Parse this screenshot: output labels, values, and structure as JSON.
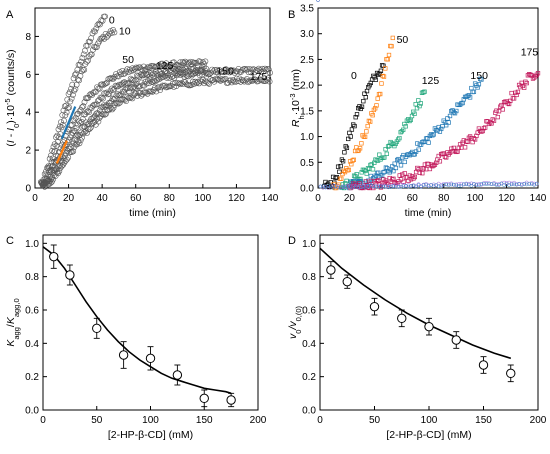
{
  "chart_data": [
    {
      "panel": "A",
      "type": "scatter",
      "xlabel": "time (min)",
      "ylabel_parts": [
        "(",
        "I",
        " - ",
        "I",
        "0",
        ")·10",
        "-5",
        " (counts/s)"
      ],
      "xlim": [
        0,
        140
      ],
      "ylim": [
        0,
        9.5
      ],
      "xticks": [
        0,
        20,
        40,
        60,
        80,
        100,
        120,
        140
      ],
      "yticks": [
        0,
        2,
        4,
        6,
        8
      ],
      "grid": false,
      "series": [
        {
          "label": "0",
          "lag": 3.5,
          "rate": 0.4,
          "end": 42,
          "points": [
            [
              5,
              0.4
            ],
            [
              10,
              1.8
            ],
            [
              15,
              3.4
            ],
            [
              20,
              4.9
            ],
            [
              25,
              6.2
            ],
            [
              30,
              7.3
            ],
            [
              35,
              8.2
            ],
            [
              40,
              8.9
            ],
            [
              42,
              9.1
            ]
          ]
        },
        {
          "label": "10",
          "lag": 3.8,
          "rate": 0.3,
          "end": 48,
          "points": [
            [
              5,
              0.3
            ],
            [
              10,
              1.5
            ],
            [
              15,
              2.9
            ],
            [
              20,
              4.3
            ],
            [
              25,
              5.5
            ],
            [
              30,
              6.5
            ],
            [
              35,
              7.3
            ],
            [
              40,
              7.9
            ],
            [
              45,
              8.2
            ],
            [
              48,
              8.3
            ]
          ]
        },
        {
          "label": "50",
          "lag": 4,
          "rate": 0.2,
          "end": 102,
          "points": [
            [
              5,
              0.2
            ],
            [
              10,
              1
            ],
            [
              15,
              2
            ],
            [
              20,
              3.1
            ],
            [
              30,
              4.6
            ],
            [
              40,
              5.5
            ],
            [
              50,
              6
            ],
            [
              60,
              6.3
            ],
            [
              80,
              6.5
            ],
            [
              100,
              6.6
            ]
          ]
        },
        {
          "label": "125",
          "lag": 4.5,
          "rate": 0.15,
          "end": 102,
          "points": [
            [
              5,
              0.1
            ],
            [
              10,
              0.8
            ],
            [
              15,
              1.6
            ],
            [
              20,
              2.6
            ],
            [
              30,
              3.9
            ],
            [
              40,
              4.8
            ],
            [
              50,
              5.4
            ],
            [
              60,
              5.8
            ],
            [
              80,
              6.2
            ],
            [
              100,
              6.3
            ]
          ]
        },
        {
          "label": "150",
          "lag": 5,
          "rate": 0.15,
          "end": 140,
          "points": [
            [
              5,
              0.1
            ],
            [
              10,
              0.6
            ],
            [
              15,
              1.3
            ],
            [
              20,
              2.1
            ],
            [
              30,
              3.3
            ],
            [
              40,
              4.2
            ],
            [
              50,
              4.9
            ],
            [
              60,
              5.4
            ],
            [
              80,
              5.9
            ],
            [
              100,
              6.1
            ],
            [
              120,
              6.2
            ],
            [
              140,
              6.2
            ]
          ]
        },
        {
          "label": "175",
          "lag": 5.5,
          "rate": 0.15,
          "end": 140,
          "points": [
            [
              6,
              0.1
            ],
            [
              10,
              0.4
            ],
            [
              15,
              1
            ],
            [
              20,
              1.7
            ],
            [
              30,
              2.9
            ],
            [
              40,
              3.8
            ],
            [
              50,
              4.5
            ],
            [
              60,
              4.9
            ],
            [
              80,
              5.4
            ],
            [
              100,
              5.6
            ],
            [
              120,
              5.7
            ],
            [
              140,
              5.7
            ]
          ]
        }
      ],
      "linear_fits": [
        {
          "color": "#1f77b4",
          "x": [
            16,
            24
          ],
          "y": [
            2.6,
            4.3
          ]
        },
        {
          "color": "#ff7f0e",
          "x": [
            13,
            19
          ],
          "y": [
            1.3,
            2.5
          ]
        }
      ]
    },
    {
      "panel": "B",
      "type": "scatter",
      "xlabel": "time (min)",
      "ylabel_parts": [
        "R",
        "h",
        "·10",
        "-3",
        " (nm)"
      ],
      "xlim": [
        0,
        140
      ],
      "ylim": [
        0,
        3.5
      ],
      "xticks": [
        0,
        20,
        40,
        60,
        80,
        100,
        120,
        140
      ],
      "yticks": [
        0.0,
        0.5,
        1.0,
        1.5,
        2.0,
        2.5,
        3.0,
        3.5
      ],
      "grid": false,
      "series": [
        {
          "label": "0",
          "color": "#000000",
          "points": [
            [
              4,
              0.02
            ],
            [
              10,
              0.15
            ],
            [
              15,
              0.5
            ],
            [
              20,
              1.0
            ],
            [
              25,
              1.45
            ],
            [
              30,
              1.8
            ],
            [
              35,
              2.1
            ],
            [
              40,
              2.35
            ],
            [
              42,
              2.45
            ]
          ]
        },
        {
          "label": "50",
          "color": "#ff7f0e",
          "points": [
            [
              10,
              0.03
            ],
            [
              15,
              0.2
            ],
            [
              20,
              0.45
            ],
            [
              25,
              0.75
            ],
            [
              30,
              1.05
            ],
            [
              35,
              1.45
            ],
            [
              40,
              1.95
            ],
            [
              45,
              2.6
            ],
            [
              48,
              2.95
            ]
          ]
        },
        {
          "label": "125",
          "color": "#1fa67a",
          "points": [
            [
              15,
              0.03
            ],
            [
              20,
              0.1
            ],
            [
              30,
              0.3
            ],
            [
              40,
              0.6
            ],
            [
              50,
              0.95
            ],
            [
              55,
              1.2
            ],
            [
              60,
              1.45
            ],
            [
              65,
              1.7
            ],
            [
              68,
              1.9
            ]
          ]
        },
        {
          "label": "150",
          "color": "#1f77b4",
          "points": [
            [
              20,
              0.03
            ],
            [
              30,
              0.1
            ],
            [
              40,
              0.25
            ],
            [
              50,
              0.45
            ],
            [
              60,
              0.7
            ],
            [
              70,
              0.95
            ],
            [
              80,
              1.25
            ],
            [
              90,
              1.6
            ],
            [
              100,
              1.95
            ],
            [
              104,
              2.1
            ]
          ]
        },
        {
          "label": "175",
          "color": "#c2185b",
          "points": [
            [
              20,
              0.02
            ],
            [
              40,
              0.08
            ],
            [
              60,
              0.25
            ],
            [
              80,
              0.6
            ],
            [
              100,
              1.0
            ],
            [
              110,
              1.3
            ],
            [
              120,
              1.65
            ],
            [
              130,
              2.0
            ],
            [
              140,
              2.3
            ]
          ]
        },
        {
          "label": "",
          "color": "#9c6ade",
          "points": [
            [
              0,
              0.02
            ],
            [
              40,
              0.04
            ],
            [
              80,
              0.07
            ],
            [
              120,
              0.09
            ],
            [
              140,
              0.1
            ]
          ]
        },
        {
          "label": "",
          "color": "#3b82c4",
          "points": [
            [
              0,
              0.02
            ],
            [
              40,
              0.03
            ],
            [
              80,
              0.05
            ],
            [
              120,
              0.07
            ],
            [
              140,
              0.08
            ]
          ]
        }
      ]
    },
    {
      "panel": "C",
      "type": "scatter",
      "xlabel": "[2-HP-β-CD] (mM)",
      "ylabel_parts": [
        "K",
        "agg",
        "/",
        "K",
        "agg,0"
      ],
      "xlim": [
        0,
        200
      ],
      "ylim": [
        0,
        1.05
      ],
      "xticks": [
        0,
        50,
        100,
        150,
        200
      ],
      "yticks": [
        0.0,
        0.2,
        0.4,
        0.6,
        0.8,
        1.0
      ],
      "grid": false,
      "x": [
        10,
        25,
        50,
        75,
        100,
        125,
        150,
        175
      ],
      "y": [
        0.92,
        0.81,
        0.49,
        0.33,
        0.31,
        0.21,
        0.07,
        0.06
      ],
      "yerr": [
        0.07,
        0.06,
        0.06,
        0.08,
        0.07,
        0.06,
        0.05,
        0.04
      ],
      "fit": {
        "x": [
          0,
          10,
          20,
          30,
          40,
          50,
          60,
          70,
          80,
          90,
          100,
          110,
          120,
          130,
          140,
          150,
          160,
          170,
          175
        ],
        "y": [
          0.98,
          0.93,
          0.85,
          0.75,
          0.65,
          0.56,
          0.48,
          0.41,
          0.35,
          0.3,
          0.26,
          0.22,
          0.19,
          0.17,
          0.15,
          0.13,
          0.12,
          0.11,
          0.1
        ]
      }
    },
    {
      "panel": "D",
      "type": "scatter",
      "xlabel": "[2-HP-β-CD] (mM)",
      "ylabel_parts": [
        "v",
        "0",
        "/v",
        "0,(0)"
      ],
      "xlim": [
        0,
        200
      ],
      "ylim": [
        0,
        1.05
      ],
      "xticks": [
        0,
        50,
        100,
        150,
        200
      ],
      "yticks": [
        0.0,
        0.2,
        0.4,
        0.6,
        0.8,
        1.0
      ],
      "grid": false,
      "x": [
        10,
        25,
        50,
        75,
        100,
        125,
        150,
        175
      ],
      "y": [
        0.84,
        0.77,
        0.62,
        0.55,
        0.5,
        0.42,
        0.27,
        0.22
      ],
      "yerr": [
        0.05,
        0.04,
        0.05,
        0.05,
        0.05,
        0.05,
        0.05,
        0.05
      ],
      "fit": {
        "x": [
          0,
          20,
          40,
          60,
          80,
          100,
          120,
          140,
          160,
          175
        ],
        "y": [
          0.97,
          0.85,
          0.75,
          0.66,
          0.58,
          0.51,
          0.45,
          0.39,
          0.34,
          0.31
        ]
      }
    }
  ]
}
